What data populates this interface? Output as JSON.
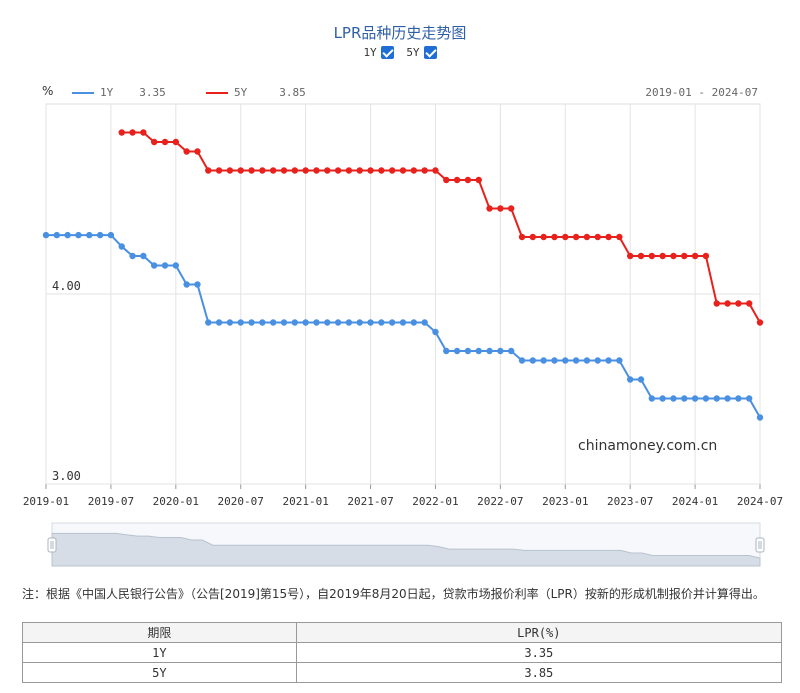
{
  "header": {
    "title": "LPR品种历史走势图",
    "toggle_1y": "1Y",
    "toggle_5y": "5Y"
  },
  "legend": {
    "unit": "%",
    "items": [
      {
        "label": "1Y",
        "value": "3.35",
        "color": "#4a90e2"
      },
      {
        "label": "5Y",
        "value": "3.85",
        "color": "#e8211c"
      }
    ],
    "range": "2019-01 - 2024-07"
  },
  "watermark": "chinamoney.com.cn",
  "note": "注：根据《中国人民银行公告》（公告[2019]第15号），自2019年8月20日起，贷款市场报价利率（LPR）按新的形成机制报价并计算得出。",
  "table": {
    "headers": [
      "期限",
      "LPR(%)"
    ],
    "rows": [
      [
        "1Y",
        "3.35"
      ],
      [
        "5Y",
        "3.85"
      ]
    ]
  },
  "chart_data": {
    "type": "line",
    "x_ticks": [
      "2019-01",
      "2019-07",
      "2020-01",
      "2020-07",
      "2021-01",
      "2021-07",
      "2022-01",
      "2022-07",
      "2023-01",
      "2023-07",
      "2024-01",
      "2024-07"
    ],
    "y_ticks": [
      "3.00",
      "4.00"
    ],
    "ylim": [
      3.0,
      5.0
    ],
    "x_range": [
      "2019-01",
      "2024-07"
    ],
    "grid": true,
    "series": [
      {
        "name": "1Y",
        "color": "#4a90e2",
        "values": [
          4.31,
          4.31,
          4.31,
          4.31,
          4.31,
          4.31,
          4.31,
          4.25,
          4.2,
          4.2,
          4.15,
          4.15,
          4.15,
          4.05,
          4.05,
          3.85,
          3.85,
          3.85,
          3.85,
          3.85,
          3.85,
          3.85,
          3.85,
          3.85,
          3.85,
          3.85,
          3.85,
          3.85,
          3.85,
          3.85,
          3.85,
          3.85,
          3.85,
          3.85,
          3.85,
          3.85,
          3.8,
          3.7,
          3.7,
          3.7,
          3.7,
          3.7,
          3.7,
          3.7,
          3.65,
          3.65,
          3.65,
          3.65,
          3.65,
          3.65,
          3.65,
          3.65,
          3.65,
          3.65,
          3.55,
          3.55,
          3.45,
          3.45,
          3.45,
          3.45,
          3.45,
          3.45,
          3.45,
          3.45,
          3.45,
          3.45,
          3.35
        ]
      },
      {
        "name": "5Y",
        "color": "#e8211c",
        "values": [
          null,
          null,
          null,
          null,
          null,
          null,
          null,
          4.85,
          4.85,
          4.85,
          4.8,
          4.8,
          4.8,
          4.75,
          4.75,
          4.65,
          4.65,
          4.65,
          4.65,
          4.65,
          4.65,
          4.65,
          4.65,
          4.65,
          4.65,
          4.65,
          4.65,
          4.65,
          4.65,
          4.65,
          4.65,
          4.65,
          4.65,
          4.65,
          4.65,
          4.65,
          4.65,
          4.6,
          4.6,
          4.6,
          4.6,
          4.45,
          4.45,
          4.45,
          4.3,
          4.3,
          4.3,
          4.3,
          4.3,
          4.3,
          4.3,
          4.3,
          4.3,
          4.3,
          4.2,
          4.2,
          4.2,
          4.2,
          4.2,
          4.2,
          4.2,
          4.2,
          3.95,
          3.95,
          3.95,
          3.95,
          3.85
        ]
      }
    ]
  }
}
